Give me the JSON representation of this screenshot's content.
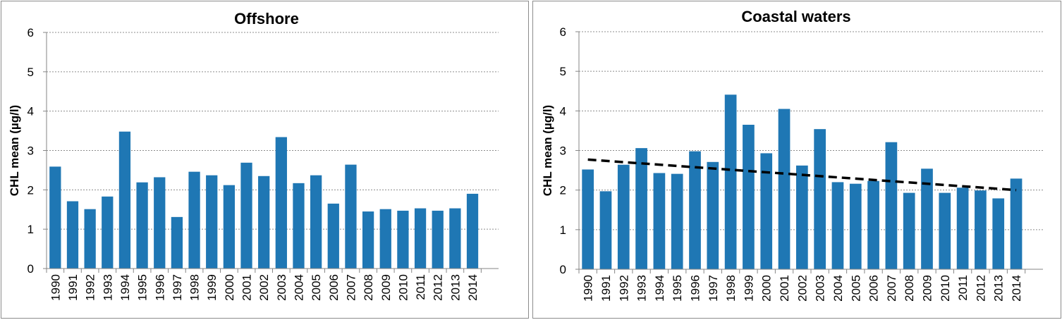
{
  "colors": {
    "bar": "#1F77B4",
    "grid": "#8c8c8c",
    "trend": "#000000"
  },
  "chart_data": [
    {
      "type": "bar",
      "title": "Offshore",
      "xlabel": "",
      "ylabel": "CHL mean (µg/l)",
      "ylim": [
        0,
        6
      ],
      "yticks": [
        "0",
        "1",
        "2",
        "3",
        "4",
        "5",
        "6"
      ],
      "grid": true,
      "categories": [
        "1990",
        "1991",
        "1992",
        "1993",
        "1994",
        "1995",
        "1996",
        "1997",
        "1998",
        "1999",
        "2000",
        "2001",
        "2002",
        "2003",
        "2004",
        "2005",
        "2006",
        "2007",
        "2008",
        "2009",
        "2010",
        "2011",
        "2012",
        "2013",
        "2014"
      ],
      "values": [
        2.59,
        1.71,
        1.51,
        1.83,
        3.48,
        2.19,
        2.32,
        1.31,
        2.46,
        2.37,
        2.12,
        2.69,
        2.35,
        3.34,
        2.17,
        2.37,
        1.65,
        2.64,
        1.45,
        1.51,
        1.47,
        1.53,
        1.47,
        1.53,
        1.9
      ]
    },
    {
      "type": "bar",
      "title": "Coastal waters",
      "xlabel": "",
      "ylabel": "CHL mean (µg/l)",
      "ylim": [
        0,
        6
      ],
      "yticks": [
        "0",
        "1",
        "2",
        "3",
        "4",
        "5",
        "6"
      ],
      "grid": true,
      "categories": [
        "1990",
        "1991",
        "1992",
        "1993",
        "1994",
        "1995",
        "1996",
        "1997",
        "1998",
        "1999",
        "2000",
        "2001",
        "2002",
        "2003",
        "2004",
        "2005",
        "2006",
        "2007",
        "2008",
        "2009",
        "2010",
        "2011",
        "2012",
        "2013",
        "2014"
      ],
      "values": [
        2.52,
        1.97,
        2.64,
        3.06,
        2.43,
        2.41,
        2.98,
        2.71,
        4.41,
        3.65,
        2.93,
        4.05,
        2.62,
        3.54,
        2.2,
        2.16,
        2.23,
        3.21,
        1.93,
        2.54,
        1.93,
        2.06,
        1.99,
        1.79,
        2.29
      ],
      "trendline": {
        "style": "dashed",
        "start": 2.77,
        "end": 2.0
      }
    }
  ]
}
